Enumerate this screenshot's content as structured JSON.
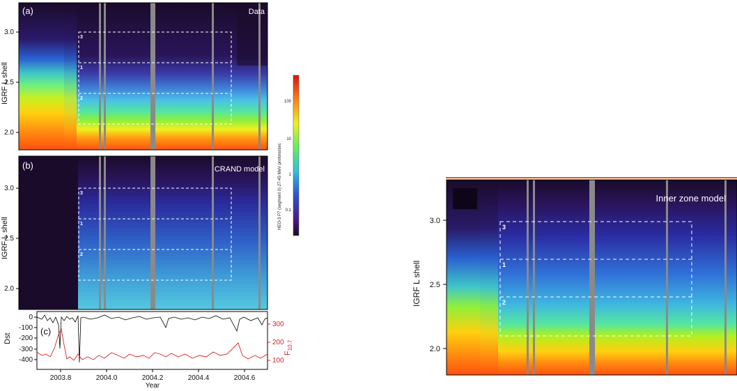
{
  "chart_data": [
    {
      "type": "heatmap",
      "panel": "(a)",
      "label": "Data",
      "ylabel": "IGRF L shell",
      "ylim": [
        1.8,
        3.25
      ],
      "xlim": [
        2003.7,
        2004.7
      ],
      "y_ticks": [
        "2.0",
        "2.5",
        "3.0"
      ],
      "box_labels": [
        "3",
        "1",
        "2"
      ],
      "colorbar_label": "HEO-3 P7 (segment 0) 27-45 MeV protons/sec",
      "colorbar_ticks": [
        "100",
        "10",
        "1",
        "0.1"
      ]
    },
    {
      "type": "heatmap",
      "panel": "(b)",
      "label": "CRAND model",
      "ylabel": "IGRF L shell",
      "ylim": [
        1.8,
        3.25
      ],
      "xlim": [
        2003.7,
        2004.7
      ],
      "y_ticks": [
        "2.0",
        "2.5",
        "3.0"
      ],
      "box_labels": [
        "3",
        "1",
        "2"
      ]
    },
    {
      "type": "line",
      "panel": "(c)",
      "xlabel": "Year",
      "x_ticks": [
        "2003.8",
        "2004.0",
        "2004.2",
        "2004.4",
        "2004.6"
      ],
      "left_axis": {
        "label": "Dst",
        "ticks": [
          "0",
          "-100",
          "-200",
          "-300",
          "-400"
        ],
        "color": "#000000"
      },
      "right_axis": {
        "label": "F10.7",
        "label_main": "F",
        "label_sub": "10.7",
        "ticks": [
          "300",
          "200",
          "100"
        ],
        "color": "#e02020"
      },
      "series": []
    },
    {
      "type": "heatmap",
      "label": "Inner zone model",
      "ylabel": "IGRF L shell",
      "ylim": [
        1.88,
        3.25
      ],
      "y_ticks": [
        "2.0",
        "2.5",
        "3.0"
      ],
      "box_labels": [
        "3",
        "1",
        "2"
      ]
    }
  ]
}
